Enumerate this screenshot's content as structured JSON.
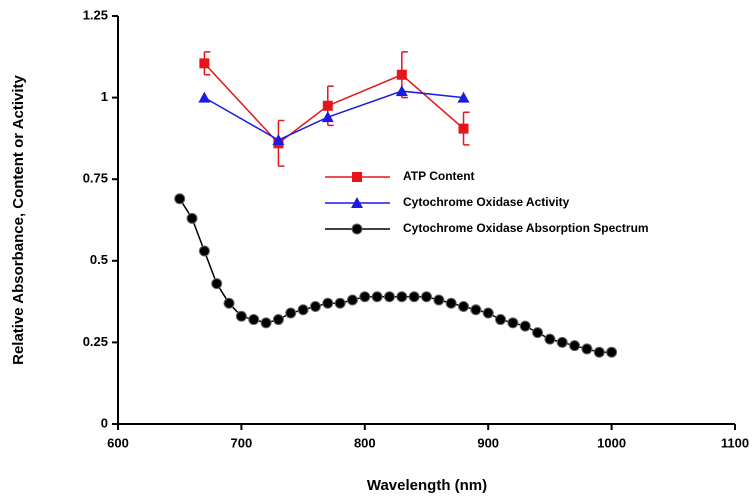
{
  "chart_data": {
    "type": "line",
    "xlabel": "Wavelength (nm)",
    "ylabel": "Relative Absorbance, Content or Activity",
    "xlim": [
      600,
      1100
    ],
    "xticks": [
      600,
      700,
      800,
      900,
      1000,
      1100
    ],
    "ylim": [
      0,
      1.25
    ],
    "yticks": [
      0,
      0.25,
      0.5,
      0.75,
      1,
      1.25
    ],
    "grid": false,
    "legend": "center",
    "series": [
      {
        "name": "ATP Content",
        "color": "#e8141c",
        "marker": "square",
        "x": [
          670,
          730,
          770,
          830,
          880
        ],
        "values": [
          1.105,
          0.86,
          0.975,
          1.07,
          0.905
        ],
        "errors": [
          0.035,
          0.07,
          0.06,
          0.07,
          0.05
        ]
      },
      {
        "name": "Cytochrome Oxidase Activity",
        "color": "#1c1ce0",
        "marker": "triangle",
        "x": [
          670,
          730,
          770,
          830,
          880
        ],
        "values": [
          1.0,
          0.87,
          0.94,
          1.02,
          1.0
        ]
      },
      {
        "name": "Cytochrome Oxidase Absorption Spectrum",
        "color": "#000000",
        "marker": "circle",
        "x": [
          650,
          660,
          670,
          680,
          690,
          700,
          710,
          720,
          730,
          740,
          750,
          760,
          770,
          780,
          790,
          800,
          810,
          820,
          830,
          840,
          850,
          860,
          870,
          880,
          890,
          900,
          910,
          920,
          930,
          940,
          950,
          960,
          970,
          980,
          990,
          1000
        ],
        "values": [
          0.69,
          0.63,
          0.53,
          0.43,
          0.37,
          0.33,
          0.32,
          0.31,
          0.32,
          0.34,
          0.35,
          0.36,
          0.37,
          0.37,
          0.38,
          0.39,
          0.39,
          0.39,
          0.39,
          0.39,
          0.39,
          0.38,
          0.37,
          0.36,
          0.35,
          0.34,
          0.32,
          0.31,
          0.3,
          0.28,
          0.26,
          0.25,
          0.24,
          0.23,
          0.22,
          0.22
        ]
      }
    ]
  }
}
